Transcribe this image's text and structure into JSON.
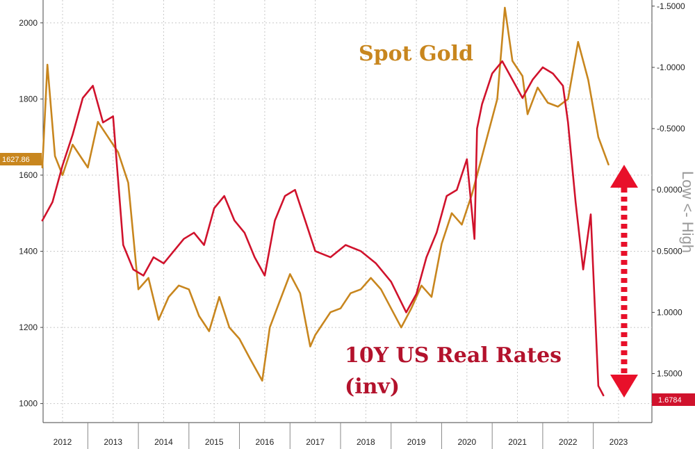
{
  "chart_data": {
    "type": "line",
    "title": "",
    "xlabel": "",
    "x_tick_labels": [
      "2012",
      "2013",
      "2014",
      "2015",
      "2016",
      "2017",
      "2018",
      "2019",
      "2020",
      "2021",
      "2022",
      "2023"
    ],
    "left_axis": {
      "label": "",
      "ylim": [
        950,
        2060
      ],
      "ticks": [
        1000,
        1200,
        1400,
        1600,
        1800,
        2000
      ],
      "tick_labels": [
        "1000",
        "1200",
        "1400",
        "1600",
        "1800",
        "2000"
      ]
    },
    "right_axis": {
      "label": "Low <- High",
      "inverted": true,
      "ylim": [
        1.9,
        -1.55
      ],
      "ticks": [
        -1.5,
        -1.0,
        -0.5,
        0.0,
        0.5,
        1.0,
        1.5
      ],
      "tick_labels": [
        "-1.5000",
        "-1.0000",
        "-0.5000",
        "0.0000",
        "0.5000",
        "1.0000",
        "1.5000"
      ]
    },
    "grid": true,
    "series": [
      {
        "name": "Spot Gold",
        "axis": "left",
        "color": "#c8861e",
        "x": [
          2011.6,
          2011.7,
          2011.85,
          2012.0,
          2012.2,
          2012.5,
          2012.7,
          2012.9,
          2013.1,
          2013.3,
          2013.5,
          2013.7,
          2013.9,
          2014.1,
          2014.3,
          2014.5,
          2014.7,
          2014.9,
          2015.1,
          2015.3,
          2015.5,
          2015.7,
          2015.95,
          2016.1,
          2016.3,
          2016.5,
          2016.7,
          2016.9,
          2017.0,
          2017.3,
          2017.5,
          2017.7,
          2017.9,
          2018.1,
          2018.3,
          2018.5,
          2018.7,
          2018.9,
          2019.1,
          2019.3,
          2019.5,
          2019.7,
          2019.9,
          2020.1,
          2020.2,
          2020.4,
          2020.6,
          2020.75,
          2020.9,
          2021.1,
          2021.2,
          2021.4,
          2021.6,
          2021.8,
          2022.0,
          2022.2,
          2022.4,
          2022.6,
          2022.8
        ],
        "values": [
          1620,
          1890,
          1650,
          1600,
          1680,
          1620,
          1740,
          1700,
          1660,
          1580,
          1300,
          1330,
          1220,
          1280,
          1310,
          1300,
          1230,
          1190,
          1280,
          1200,
          1170,
          1120,
          1060,
          1200,
          1270,
          1340,
          1290,
          1150,
          1180,
          1240,
          1250,
          1290,
          1300,
          1330,
          1300,
          1250,
          1200,
          1250,
          1310,
          1280,
          1420,
          1500,
          1470,
          1550,
          1600,
          1700,
          1800,
          2040,
          1900,
          1860,
          1760,
          1830,
          1790,
          1780,
          1800,
          1950,
          1850,
          1700,
          1627.86
        ]
      },
      {
        "name": "10Y US Real Rates (inv)",
        "axis": "right",
        "color": "#d0122c",
        "x": [
          2011.6,
          2011.8,
          2012.0,
          2012.2,
          2012.4,
          2012.6,
          2012.8,
          2013.0,
          2013.2,
          2013.4,
          2013.6,
          2013.8,
          2014.0,
          2014.2,
          2014.4,
          2014.6,
          2014.8,
          2015.0,
          2015.2,
          2015.4,
          2015.6,
          2015.8,
          2016.0,
          2016.2,
          2016.4,
          2016.6,
          2016.8,
          2017.0,
          2017.3,
          2017.6,
          2017.9,
          2018.2,
          2018.5,
          2018.8,
          2019.0,
          2019.2,
          2019.4,
          2019.6,
          2019.8,
          2020.0,
          2020.15,
          2020.2,
          2020.3,
          2020.5,
          2020.7,
          2020.9,
          2021.1,
          2021.3,
          2021.5,
          2021.7,
          2021.9,
          2022.0,
          2022.15,
          2022.3,
          2022.45,
          2022.6,
          2022.7
        ],
        "values": [
          0.25,
          0.1,
          -0.2,
          -0.45,
          -0.75,
          -0.85,
          -0.55,
          -0.6,
          0.45,
          0.65,
          0.7,
          0.55,
          0.6,
          0.5,
          0.4,
          0.35,
          0.45,
          0.15,
          0.05,
          0.25,
          0.35,
          0.55,
          0.7,
          0.25,
          0.05,
          0.0,
          0.25,
          0.5,
          0.55,
          0.45,
          0.5,
          0.6,
          0.75,
          1.0,
          0.85,
          0.55,
          0.35,
          0.05,
          0.0,
          -0.25,
          0.4,
          -0.5,
          -0.7,
          -0.95,
          -1.05,
          -0.9,
          -0.75,
          -0.9,
          -1.0,
          -0.95,
          -0.85,
          -0.55,
          0.1,
          0.65,
          0.2,
          1.6,
          1.6784
        ]
      }
    ],
    "annotations": {
      "gold_label": "Spot Gold",
      "rates_label_line1": "10Y US Real Rates",
      "rates_label_line2": "(inv)",
      "gold_last_value": "1627.86",
      "rates_last_value": "1.6784"
    }
  }
}
